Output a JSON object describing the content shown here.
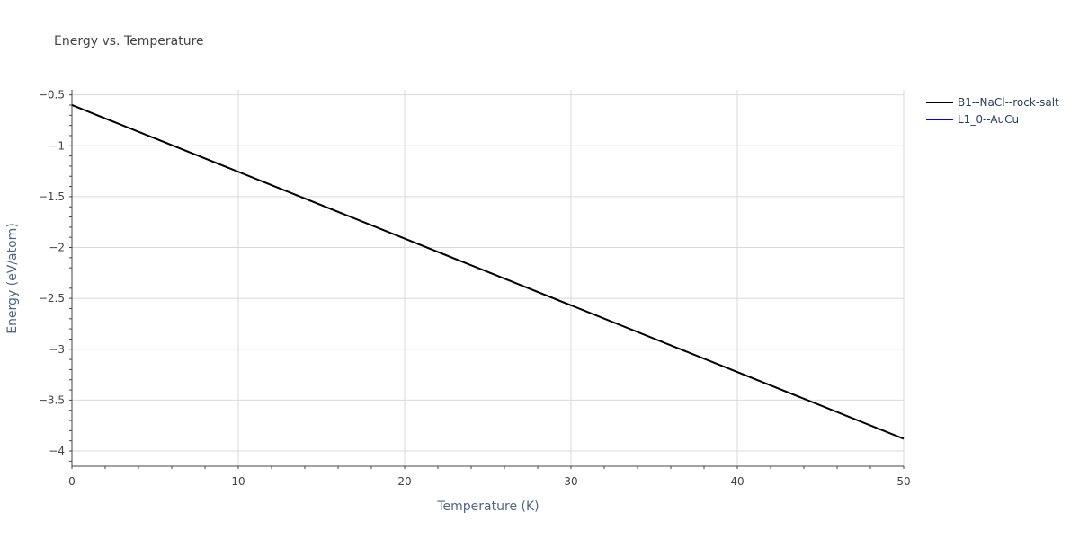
{
  "chart_data": {
    "type": "line",
    "title": "Energy vs. Temperature",
    "xlabel": "Temperature (K)",
    "ylabel": "Energy (eV/atom)",
    "xlim": [
      0,
      50
    ],
    "ylim": [
      -4.15,
      -0.45
    ],
    "xticks": [
      0,
      10,
      20,
      30,
      40,
      50
    ],
    "xtick_labels": [
      "0",
      "10",
      "20",
      "30",
      "40",
      "50"
    ],
    "yticks": [
      -0.5,
      -1,
      -1.5,
      -2,
      -2.5,
      -3,
      -3.5,
      -4
    ],
    "ytick_labels": [
      "−0.5",
      "−1",
      "−1.5",
      "−2",
      "−2.5",
      "−3",
      "−3.5",
      "−4"
    ],
    "grid": true,
    "legend": "top-right",
    "series": [
      {
        "name": "B1--NaCl--rock-salt",
        "color": "#000000",
        "x": [
          0,
          50
        ],
        "y": [
          -0.6,
          -3.88
        ]
      },
      {
        "name": "L1_0--AuCu",
        "color": "#0000ff",
        "x": [],
        "y": []
      }
    ]
  }
}
